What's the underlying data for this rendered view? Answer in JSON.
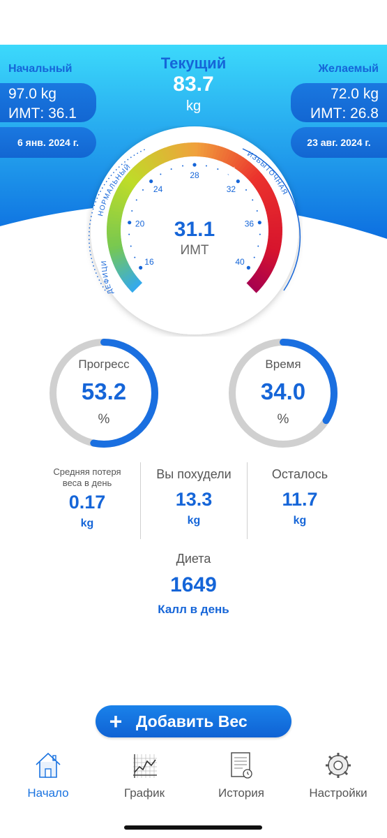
{
  "start": {
    "label": "Начальный",
    "weight": "97.0 kg",
    "bmi": "ИМТ: 36.1",
    "date": "6 янв. 2024 г."
  },
  "current": {
    "label": "Текущий",
    "value": "83.7",
    "unit": "kg"
  },
  "target": {
    "label": "Желаемый",
    "weight": "72.0 kg",
    "bmi": "ИМТ: 26.8",
    "date": "23 авг. 2024 г."
  },
  "gauge": {
    "value": "31.1",
    "unit": "ИМТ",
    "bmi": 31.1,
    "min": 15,
    "max": 41,
    "ticks": [
      "16",
      "20",
      "24",
      "28",
      "32",
      "36",
      "40"
    ],
    "zones": [
      "ДЕФИЦИТ",
      "НОРМАЛЬНЫЙ",
      "ИЗБЫТОЧНАЯ"
    ]
  },
  "progress": {
    "label": "Прогресс",
    "value": "53.2",
    "unit": "%",
    "fraction": 0.532
  },
  "time": {
    "label": "Время",
    "value": "34.0",
    "unit": "%",
    "fraction": 0.34
  },
  "stats": {
    "avg_loss": {
      "label_line1": "Средняя потеря",
      "label_line2": "веса в день",
      "value": "0.17",
      "unit": "kg"
    },
    "lost": {
      "label": "Вы похудели",
      "value": "13.3",
      "unit": "kg"
    },
    "remaining": {
      "label": "Осталось",
      "value": "11.7",
      "unit": "kg"
    }
  },
  "diet": {
    "label": "Диета",
    "value": "1649",
    "unit": "Калл в день"
  },
  "add_button": {
    "label": "Добавить Вес"
  },
  "tabs": [
    {
      "label": "Начало",
      "icon": "home-icon",
      "active": true
    },
    {
      "label": "График",
      "icon": "chart-icon",
      "active": false
    },
    {
      "label": "История",
      "icon": "history-icon",
      "active": false
    },
    {
      "label": "Настройки",
      "icon": "settings-icon",
      "active": false
    }
  ],
  "colors": {
    "accent": "#1565d8",
    "header_top": "#3cd9fb",
    "header_bottom": "#0d6fe0",
    "ring_track": "#d0d0d0",
    "ring_fill": "#1a6fe0"
  }
}
